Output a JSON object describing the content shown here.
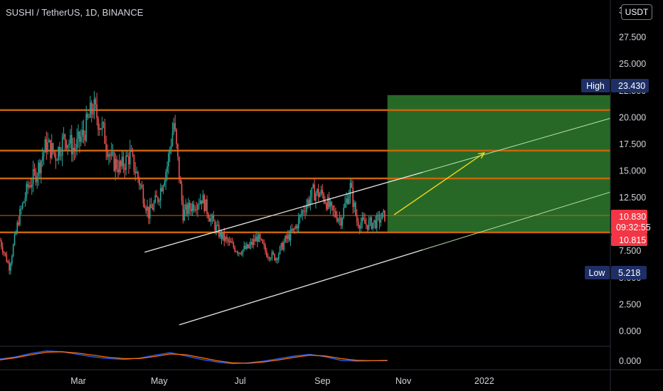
{
  "header": {
    "title": "SUSHI / TetherUS, 1D, BINANCE",
    "currency_label": "USDT"
  },
  "colors": {
    "background": "#000000",
    "level_line": "#c8650a",
    "target_box": "#2e7a2e",
    "channel": "#e8e8e8",
    "arrow": "#e6d21a",
    "candle_up": "#26a69a",
    "candle_down": "#ef5350",
    "high_tag": "#1e2f66",
    "price_tag": "#f23645"
  },
  "chart_data": {
    "type": "candlestick",
    "y_ticks": [
      "0.000",
      "2.500",
      "5.000",
      "7.500",
      "10.000",
      "12.500",
      "15.000",
      "17.500",
      "20.000",
      "22.500",
      "25.000",
      "27.500",
      "30.000"
    ],
    "x_ticks": [
      "Mar",
      "May",
      "Jul",
      "Sep",
      "Nov",
      "2022"
    ],
    "ylim": [
      -1.4,
      31
    ],
    "horizontal_levels": [
      20.7,
      16.9,
      14.3,
      10.83,
      9.25
    ],
    "target_zone": {
      "x_start": "2021-10-20",
      "x_end": "2022-04-08",
      "y_low": 9.25,
      "y_high": 22.1
    },
    "channel": {
      "upper": [
        [
          "2021-04-20",
          7.4
        ],
        [
          "2022-04-08",
          20.0
        ]
      ],
      "lower": [
        [
          "2021-05-16",
          0.6
        ],
        [
          "2022-04-08",
          13.1
        ]
      ]
    },
    "projection_arrow": {
      "from": [
        "2021-10-25",
        10.9
      ],
      "to": [
        "2022-01-01",
        16.7
      ]
    },
    "price_path": [
      [
        "2021-01-01",
        8.5
      ],
      [
        "2021-01-08",
        6.0
      ],
      [
        "2021-01-15",
        10.5
      ],
      [
        "2021-01-22",
        13.5
      ],
      [
        "2021-01-29",
        15.0
      ],
      [
        "2021-02-05",
        17.5
      ],
      [
        "2021-02-12",
        16.5
      ],
      [
        "2021-02-19",
        18.2
      ],
      [
        "2021-02-26",
        17.0
      ],
      [
        "2021-03-05",
        18.5
      ],
      [
        "2021-03-12",
        21.0
      ],
      [
        "2021-03-19",
        19.0
      ],
      [
        "2021-03-26",
        16.0
      ],
      [
        "2021-04-02",
        15.3
      ],
      [
        "2021-04-09",
        16.5
      ],
      [
        "2021-04-16",
        14.0
      ],
      [
        "2021-04-23",
        11.0
      ],
      [
        "2021-04-30",
        12.5
      ],
      [
        "2021-05-07",
        15.5
      ],
      [
        "2021-05-12",
        19.5
      ],
      [
        "2021-05-19",
        11.0
      ],
      [
        "2021-05-26",
        11.8
      ],
      [
        "2021-06-02",
        12.5
      ],
      [
        "2021-06-09",
        10.5
      ],
      [
        "2021-06-16",
        9.0
      ],
      [
        "2021-06-23",
        8.2
      ],
      [
        "2021-06-30",
        7.5
      ],
      [
        "2021-07-07",
        7.8
      ],
      [
        "2021-07-14",
        8.8
      ],
      [
        "2021-07-21",
        7.3
      ],
      [
        "2021-07-28",
        6.9
      ],
      [
        "2021-08-04",
        8.5
      ],
      [
        "2021-08-11",
        9.5
      ],
      [
        "2021-08-18",
        11.5
      ],
      [
        "2021-08-25",
        13.0
      ],
      [
        "2021-09-01",
        12.8
      ],
      [
        "2021-09-08",
        11.2
      ],
      [
        "2021-09-15",
        10.5
      ],
      [
        "2021-09-22",
        13.5
      ],
      [
        "2021-09-27",
        10.3
      ],
      [
        "2021-10-04",
        10.0
      ],
      [
        "2021-10-11",
        10.2
      ],
      [
        "2021-10-18",
        10.83
      ]
    ],
    "oscillator": {
      "type": "line",
      "series": [
        {
          "values": [
            0.25,
            0.5,
            0.9,
            1.2,
            1.1,
            0.8,
            0.5,
            0.3,
            0.2,
            0.35,
            0.7,
            1.0,
            0.6,
            0.2,
            -0.1,
            -0.3,
            -0.2,
            0.0,
            0.3,
            0.6,
            0.8,
            0.5,
            0.1,
            0.0,
            0.05,
            0.1
          ]
        },
        {
          "values": [
            0.15,
            0.4,
            0.75,
            1.05,
            1.1,
            0.95,
            0.7,
            0.45,
            0.3,
            0.3,
            0.55,
            0.85,
            0.75,
            0.4,
            0.05,
            -0.2,
            -0.25,
            -0.1,
            0.15,
            0.45,
            0.7,
            0.6,
            0.3,
            0.1,
            0.05,
            0.05
          ]
        }
      ],
      "y_tick": "0.000"
    }
  },
  "price_scale_tags": {
    "high_label": "High",
    "high_value": "23.430",
    "current_price": "10.830",
    "countdown": "09:32:55",
    "second_price": "10.815",
    "low_label": "Low",
    "low_value": "5.218"
  }
}
